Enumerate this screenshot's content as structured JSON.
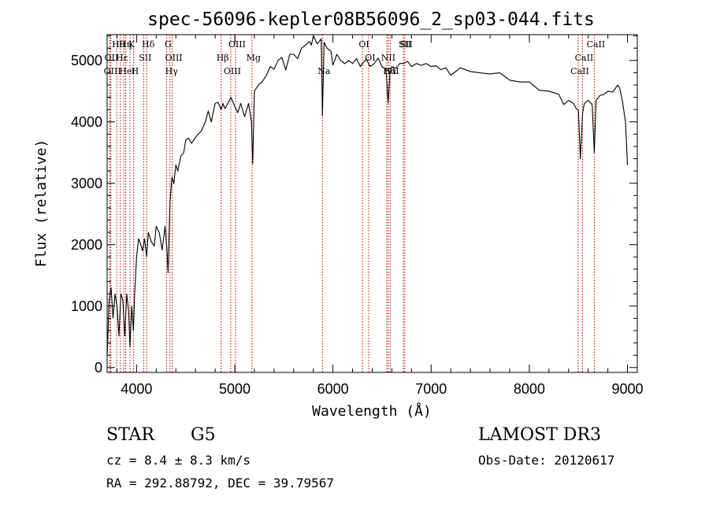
{
  "chart_data": {
    "type": "line",
    "title": "spec-56096-kepler08B56096_2_sp03-044.fits",
    "xlabel": "Wavelength (Å)",
    "ylabel": "Flux (relative)",
    "xlim": [
      3700,
      9100
    ],
    "ylim": [
      -80,
      5420
    ],
    "xticks": [
      4000,
      5000,
      6000,
      7000,
      8000,
      9000
    ],
    "yticks": [
      0,
      1000,
      2000,
      3000,
      4000,
      5000
    ],
    "grid": false,
    "series": [
      {
        "name": "spectrum",
        "x": [
          3700,
          3720,
          3740,
          3760,
          3780,
          3800,
          3820,
          3840,
          3860,
          3880,
          3900,
          3920,
          3933,
          3950,
          3968,
          3980,
          4000,
          4020,
          4040,
          4060,
          4080,
          4102,
          4120,
          4150,
          4180,
          4200,
          4230,
          4260,
          4290,
          4310,
          4320,
          4340,
          4360,
          4380,
          4400,
          4420,
          4450,
          4480,
          4500,
          4530,
          4560,
          4600,
          4630,
          4660,
          4700,
          4730,
          4760,
          4800,
          4830,
          4861,
          4880,
          4900,
          4930,
          4960,
          5000,
          5030,
          5060,
          5100,
          5140,
          5170,
          5183,
          5200,
          5240,
          5280,
          5320,
          5360,
          5400,
          5440,
          5480,
          5520,
          5560,
          5600,
          5640,
          5680,
          5720,
          5760,
          5780,
          5800,
          5840,
          5880,
          5893,
          5910,
          5940,
          5980,
          6000,
          6040,
          6080,
          6120,
          6160,
          6200,
          6240,
          6280,
          6300,
          6340,
          6380,
          6420,
          6460,
          6500,
          6540,
          6563,
          6580,
          6600,
          6640,
          6680,
          6720,
          6760,
          6800,
          6850,
          6900,
          6950,
          7000,
          7050,
          7100,
          7150,
          7200,
          7300,
          7400,
          7500,
          7600,
          7700,
          7800,
          7900,
          8000,
          8100,
          8200,
          8300,
          8350,
          8400,
          8450,
          8480,
          8500,
          8520,
          8542,
          8560,
          8600,
          8640,
          8662,
          8680,
          8720,
          8760,
          8800,
          8850,
          8900,
          8920,
          8950,
          8980,
          9000
        ],
        "y": [
          200,
          1100,
          1300,
          800,
          1200,
          1000,
          500,
          1200,
          1100,
          600,
          1200,
          900,
          450,
          1000,
          600,
          1200,
          1800,
          2100,
          2000,
          1900,
          2100,
          1800,
          2200,
          2050,
          2100,
          2300,
          2200,
          2050,
          2300,
          1900,
          1500,
          2700,
          3100,
          3000,
          3300,
          3200,
          3400,
          3500,
          3700,
          3800,
          3650,
          3750,
          3900,
          3850,
          4000,
          4150,
          4000,
          4300,
          4350,
          4200,
          4300,
          4250,
          4300,
          4400,
          4350,
          4150,
          4300,
          4200,
          4300,
          4000,
          3350,
          4500,
          4600,
          4700,
          4750,
          4900,
          4850,
          5000,
          5050,
          4950,
          5100,
          5100,
          5150,
          5200,
          5250,
          5300,
          5250,
          5400,
          5300,
          5350,
          4100,
          5300,
          5200,
          5150,
          5050,
          5100,
          5000,
          5050,
          5000,
          4950,
          5000,
          4900,
          4950,
          5000,
          4900,
          4950,
          5000,
          4900,
          4850,
          4400,
          4800,
          4900,
          5000,
          4950,
          4950,
          4950,
          4900,
          4950,
          4900,
          4950,
          4900,
          4900,
          4850,
          4880,
          4850,
          4880,
          4820,
          4850,
          4780,
          4800,
          4700,
          4650,
          4650,
          4550,
          4500,
          4450,
          4300,
          4350,
          4300,
          4320,
          4200,
          3400,
          4200,
          4300,
          4350,
          4250,
          3500,
          4350,
          4400,
          4450,
          4500,
          4550,
          4600,
          4550,
          4450,
          4000,
          3300
        ],
        "color": "#000000"
      }
    ],
    "line_markers": [
      {
        "name": "Hθ",
        "wavelength": 3798
      },
      {
        "name": "OII",
        "wavelength": 3727
      },
      {
        "name": "OIII",
        "wavelength": 3737
      },
      {
        "name": "K",
        "wavelength": 3933
      },
      {
        "name": "Hε",
        "wavelength": 3835
      },
      {
        "name": "HeI",
        "wavelength": 3889
      },
      {
        "name": "Hη",
        "wavelength": 3870
      },
      {
        "name": "SII",
        "wavelength": 4072
      },
      {
        "name": "H",
        "wavelength": 3968
      },
      {
        "name": "Hδ",
        "wavelength": 4102
      },
      {
        "name": "OIII",
        "wavelength": 4363
      },
      {
        "name": "Hγ",
        "wavelength": 4340
      },
      {
        "name": "G",
        "wavelength": 4305
      },
      {
        "name": "Hβ",
        "wavelength": 4861
      },
      {
        "name": "OIII",
        "wavelength": 4959
      },
      {
        "name": "OIII",
        "wavelength": 5007
      },
      {
        "name": "Mg",
        "wavelength": 5175
      },
      {
        "name": "Na",
        "wavelength": 5893
      },
      {
        "name": "OI",
        "wavelength": 6300
      },
      {
        "name": "OI",
        "wavelength": 6363
      },
      {
        "name": "Hα",
        "wavelength": 6563
      },
      {
        "name": "SII",
        "wavelength": 6717
      },
      {
        "name": "NII",
        "wavelength": 6548
      },
      {
        "name": "NII",
        "wavelength": 6583
      },
      {
        "name": "SII",
        "wavelength": 6731
      },
      {
        "name": "CaII",
        "wavelength": 8542
      },
      {
        "name": "CaII",
        "wavelength": 8498
      },
      {
        "name": "CaII",
        "wavelength": 8662
      }
    ]
  },
  "info": {
    "class_label": "STAR",
    "subclass": "G5",
    "survey": "LAMOST DR3",
    "cz": "cz = 8.4 ± 8.3 km/s",
    "obs_date": "Obs-Date: 20120617",
    "coords": "RA = 292.88792, DEC =  39.79567"
  }
}
